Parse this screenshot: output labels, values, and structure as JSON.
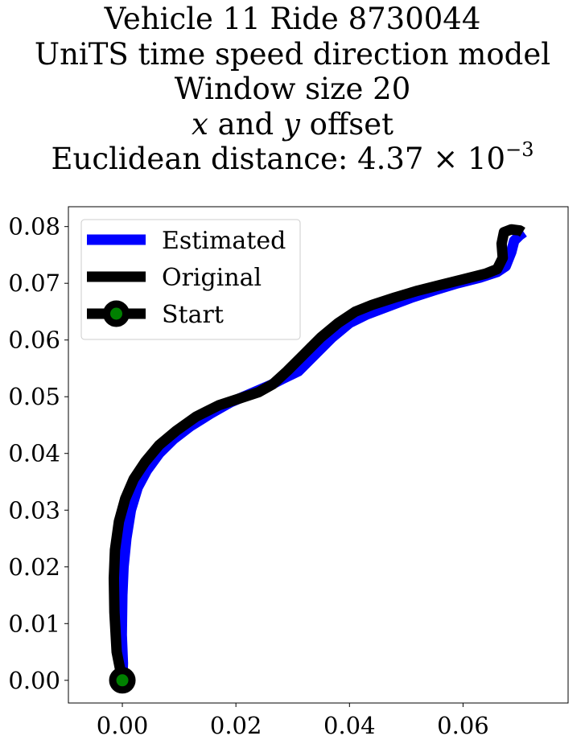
{
  "title": {
    "line1": "Vehicle 11 Ride 8730044",
    "line2": "UniTS time speed direction model",
    "line3": "Window size 20",
    "line4_x": "x",
    "line4_mid": " and ",
    "line4_y": "y",
    "line4_end": " offset",
    "line5_text": "Euclidean distance: 4.37 × 10",
    "line5_exp": "−3"
  },
  "chart_data": {
    "type": "line",
    "xlim": [
      -0.0095,
      0.0785
    ],
    "ylim": [
      -0.004,
      0.0835
    ],
    "xticks": [
      0.0,
      0.02,
      0.04,
      0.06
    ],
    "xtick_labels": [
      "0.00",
      "0.02",
      "0.04",
      "0.06"
    ],
    "yticks": [
      0.0,
      0.01,
      0.02,
      0.03,
      0.04,
      0.05,
      0.06,
      0.07,
      0.08
    ],
    "ytick_labels": [
      "0.00",
      "0.01",
      "0.02",
      "0.03",
      "0.04",
      "0.05",
      "0.06",
      "0.07",
      "0.08"
    ],
    "grid": false,
    "legend_position": "upper-left",
    "series": [
      {
        "name": "Estimated",
        "color": "#0000ff",
        "x": [
          0.0,
          0.0001,
          -0.0001,
          0.0,
          0.0002,
          0.0007,
          0.0015,
          0.0027,
          0.0043,
          0.0065,
          0.009,
          0.012,
          0.0155,
          0.019,
          0.0225,
          0.026,
          0.0285,
          0.031,
          0.034,
          0.037,
          0.04,
          0.043,
          0.047,
          0.051,
          0.055,
          0.059,
          0.063,
          0.066,
          0.0675,
          0.0685,
          0.069,
          0.07,
          0.0707
        ],
        "y": [
          0.0,
          0.003,
          0.008,
          0.015,
          0.02,
          0.025,
          0.03,
          0.034,
          0.037,
          0.04,
          0.0425,
          0.0448,
          0.047,
          0.049,
          0.0505,
          0.052,
          0.0533,
          0.0545,
          0.0575,
          0.0605,
          0.063,
          0.0645,
          0.066,
          0.0675,
          0.0688,
          0.07,
          0.071,
          0.072,
          0.073,
          0.0755,
          0.0775,
          0.0785,
          0.079
        ]
      },
      {
        "name": "Original",
        "color": "#000000",
        "x": [
          0.0,
          -0.001,
          -0.0014,
          -0.0015,
          -0.0013,
          -0.0006,
          0.0005,
          0.002,
          0.004,
          0.0065,
          0.0095,
          0.013,
          0.017,
          0.021,
          0.024,
          0.0265,
          0.029,
          0.032,
          0.035,
          0.038,
          0.041,
          0.044,
          0.048,
          0.052,
          0.056,
          0.06,
          0.064,
          0.066,
          0.067,
          0.0668,
          0.0672,
          0.0685,
          0.07,
          0.0705
        ],
        "y": [
          0.0,
          0.005,
          0.012,
          0.018,
          0.023,
          0.028,
          0.032,
          0.0355,
          0.0385,
          0.0415,
          0.044,
          0.0465,
          0.0485,
          0.0498,
          0.0508,
          0.0522,
          0.0545,
          0.0575,
          0.0605,
          0.063,
          0.065,
          0.0662,
          0.0675,
          0.0687,
          0.0697,
          0.0707,
          0.0717,
          0.0725,
          0.0745,
          0.077,
          0.079,
          0.0795,
          0.0793,
          0.079
        ]
      }
    ],
    "start": {
      "name": "Start",
      "x": 0.0,
      "y": 0.0,
      "edge_color": "#000000",
      "fill_color": "#008000"
    }
  }
}
